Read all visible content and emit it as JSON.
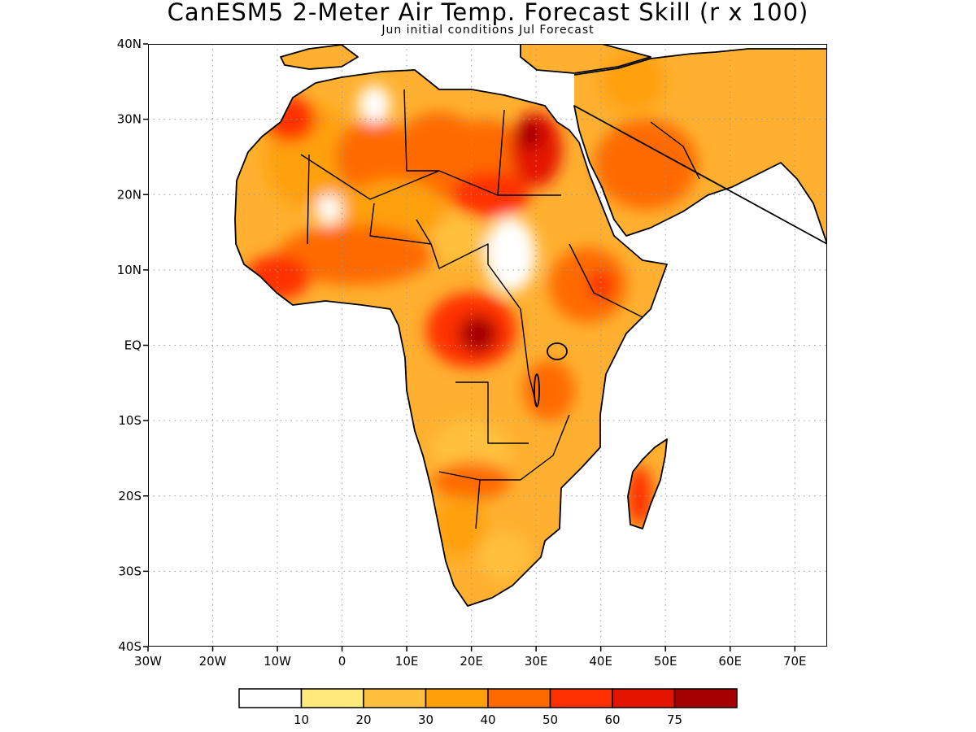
{
  "title": "CanESM5 2-Meter Air Temp. Forecast Skill (r x 100)",
  "subtitle": "Jun initial conditions  Jul Forecast",
  "map": {
    "lon_range": [
      -30,
      75
    ],
    "lat_range": [
      -40,
      40
    ],
    "lat_ticks": [
      {
        "value": 40,
        "label": "40N"
      },
      {
        "value": 30,
        "label": "30N"
      },
      {
        "value": 20,
        "label": "20N"
      },
      {
        "value": 10,
        "label": "10N"
      },
      {
        "value": 0,
        "label": "EQ"
      },
      {
        "value": -10,
        "label": "10S"
      },
      {
        "value": -20,
        "label": "20S"
      },
      {
        "value": -30,
        "label": "30S"
      },
      {
        "value": -40,
        "label": "40S"
      }
    ],
    "lon_ticks": [
      {
        "value": -30,
        "label": "30W"
      },
      {
        "value": -20,
        "label": "20W"
      },
      {
        "value": -10,
        "label": "10W"
      },
      {
        "value": 0,
        "label": "0"
      },
      {
        "value": 10,
        "label": "10E"
      },
      {
        "value": 20,
        "label": "20E"
      },
      {
        "value": 30,
        "label": "30E"
      },
      {
        "value": 40,
        "label": "40E"
      },
      {
        "value": 50,
        "label": "50E"
      },
      {
        "value": 60,
        "label": "60E"
      },
      {
        "value": 70,
        "label": "70E"
      }
    ],
    "grid": true,
    "skill_blobs": [
      {
        "lon": -5,
        "lat": 25,
        "rx": 7,
        "ry": 7,
        "level": 3
      },
      {
        "lon": 5,
        "lat": 25,
        "rx": 6,
        "ry": 5,
        "level": 4
      },
      {
        "lon": 15,
        "lat": 25,
        "rx": 7,
        "ry": 6,
        "level": 4
      },
      {
        "lon": 22,
        "lat": 24,
        "rx": 7,
        "ry": 6,
        "level": 4
      },
      {
        "lon": 30,
        "lat": 26,
        "rx": 4,
        "ry": 5,
        "level": 6
      },
      {
        "lon": 29,
        "lat": 28,
        "rx": 2,
        "ry": 2,
        "level": 7
      },
      {
        "lon": 23,
        "lat": 20,
        "rx": 6,
        "ry": 3,
        "level": 5
      },
      {
        "lon": -8,
        "lat": 30,
        "rx": 4,
        "ry": 3,
        "level": 5
      },
      {
        "lon": 5,
        "lat": 32,
        "rx": 2.5,
        "ry": 2.5,
        "level": 0
      },
      {
        "lon": -2,
        "lat": 18,
        "rx": 2,
        "ry": 2,
        "level": 0
      },
      {
        "lon": 18,
        "lat": 14,
        "rx": 4,
        "ry": 3,
        "level": 2
      },
      {
        "lon": 26,
        "lat": 12,
        "rx": 4,
        "ry": 5,
        "level": 0
      },
      {
        "lon": 8,
        "lat": 18,
        "rx": 8,
        "ry": 4,
        "level": 3
      },
      {
        "lon": 2,
        "lat": 12,
        "rx": 12,
        "ry": 4,
        "level": 4
      },
      {
        "lon": -10,
        "lat": 9,
        "rx": 5,
        "ry": 3,
        "level": 5
      },
      {
        "lon": 20,
        "lat": 2,
        "rx": 7,
        "ry": 5,
        "level": 5
      },
      {
        "lon": 21,
        "lat": 1.5,
        "rx": 3,
        "ry": 2.5,
        "level": 7
      },
      {
        "lon": 38,
        "lat": 8,
        "rx": 6,
        "ry": 5,
        "level": 4
      },
      {
        "lon": 40,
        "lat": 8,
        "rx": 2,
        "ry": 2,
        "level": 5
      },
      {
        "lon": 47,
        "lat": 24,
        "rx": 8,
        "ry": 6,
        "level": 4
      },
      {
        "lon": 45,
        "lat": 35,
        "rx": 5,
        "ry": 4,
        "level": 3
      },
      {
        "lon": 32,
        "lat": -6,
        "rx": 4,
        "ry": 4,
        "level": 4
      },
      {
        "lon": 20,
        "lat": -14,
        "rx": 6,
        "ry": 4,
        "level": 2
      },
      {
        "lon": 20,
        "lat": -18,
        "rx": 6,
        "ry": 2.5,
        "level": 4
      },
      {
        "lon": 18,
        "lat": -24,
        "rx": 4,
        "ry": 4,
        "level": 3
      },
      {
        "lon": 25,
        "lat": -28,
        "rx": 4,
        "ry": 3,
        "level": 2
      },
      {
        "lon": 46,
        "lat": -20,
        "rx": 2,
        "ry": 4,
        "level": 5
      }
    ]
  },
  "colorbar": {
    "colors": [
      "#ffffff",
      "#ffe97a",
      "#ffc13d",
      "#ffa00a",
      "#ff6a00",
      "#ff3000",
      "#e41400",
      "#a50000"
    ],
    "labels": [
      "10",
      "20",
      "30",
      "40",
      "50",
      "60",
      "75"
    ]
  }
}
